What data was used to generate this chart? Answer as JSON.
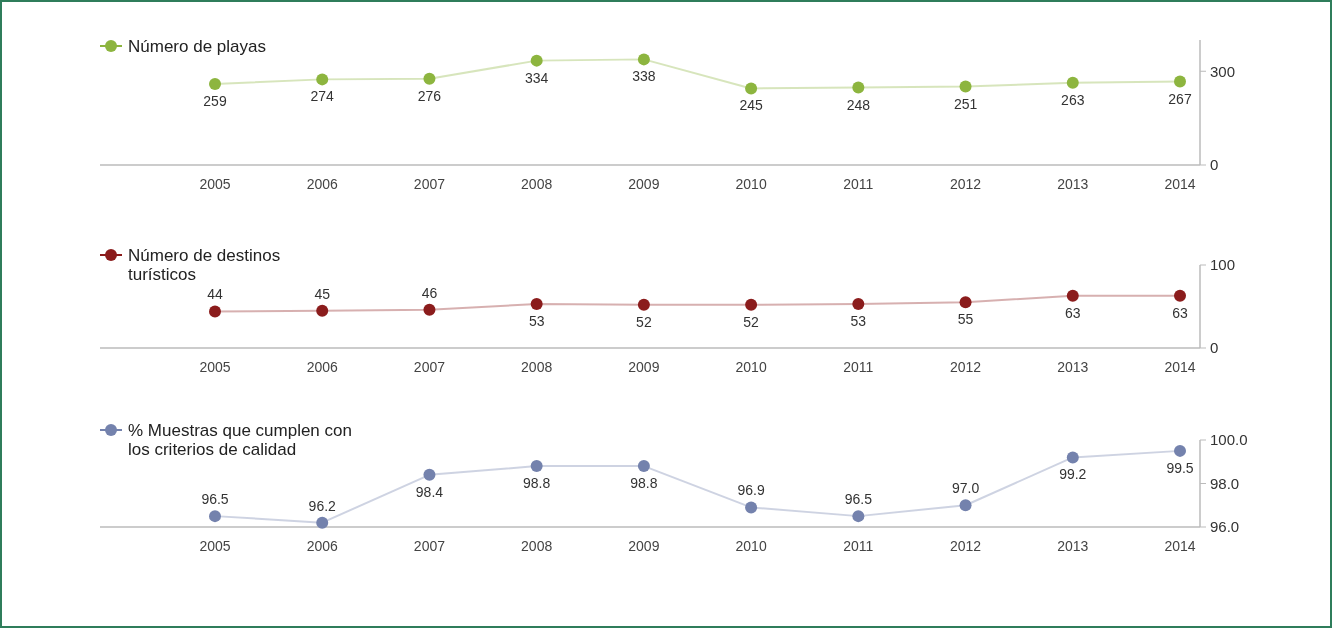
{
  "chart_data": [
    {
      "type": "line",
      "categories": [
        "2005",
        "2006",
        "2007",
        "2008",
        "2009",
        "2010",
        "2011",
        "2012",
        "2013",
        "2014"
      ],
      "series": [
        {
          "name": "Número de playas",
          "color": "#8db53f",
          "values": [
            259,
            274,
            276,
            334,
            338,
            245,
            248,
            251,
            263,
            267
          ]
        }
      ],
      "ylim": [
        0,
        400
      ],
      "yticks": [
        0,
        300
      ],
      "legend": "top left",
      "marker": "circle",
      "data_labels": true,
      "grid": false
    },
    {
      "type": "line",
      "categories": [
        "2005",
        "2006",
        "2007",
        "2008",
        "2009",
        "2010",
        "2011",
        "2012",
        "2013",
        "2014"
      ],
      "series": [
        {
          "name": "Número de destinos turísticos",
          "color": "#8b1c1c",
          "values": [
            44,
            45,
            46,
            53,
            52,
            52,
            53,
            55,
            63,
            63
          ]
        }
      ],
      "ylim": [
        0,
        100
      ],
      "yticks": [
        0,
        100
      ],
      "legend": "top left",
      "marker": "circle",
      "data_labels": true,
      "grid": false
    },
    {
      "type": "line",
      "categories": [
        "2005",
        "2006",
        "2007",
        "2008",
        "2009",
        "2010",
        "2011",
        "2012",
        "2013",
        "2014"
      ],
      "series": [
        {
          "name": "% Muestras que cumplen con los criterios de calidad",
          "color": "#7482ad",
          "values": [
            96.5,
            96.2,
            98.4,
            98.8,
            98.8,
            96.9,
            96.5,
            97.0,
            99.2,
            99.5
          ],
          "value_labels": [
            "96.5",
            "96.2",
            "98.4",
            "98.8",
            "98.8",
            "96.9",
            "96.5",
            "97.0",
            "99.2",
            "99.5"
          ]
        }
      ],
      "ylim": [
        96,
        100
      ],
      "yticks": [
        {
          "value": 96,
          "label": "96.0"
        },
        {
          "value": 98,
          "label": "98.0"
        },
        {
          "value": 100,
          "label": "100.0"
        }
      ],
      "legend": "top left",
      "marker": "circle",
      "data_labels": true,
      "grid": false
    }
  ]
}
